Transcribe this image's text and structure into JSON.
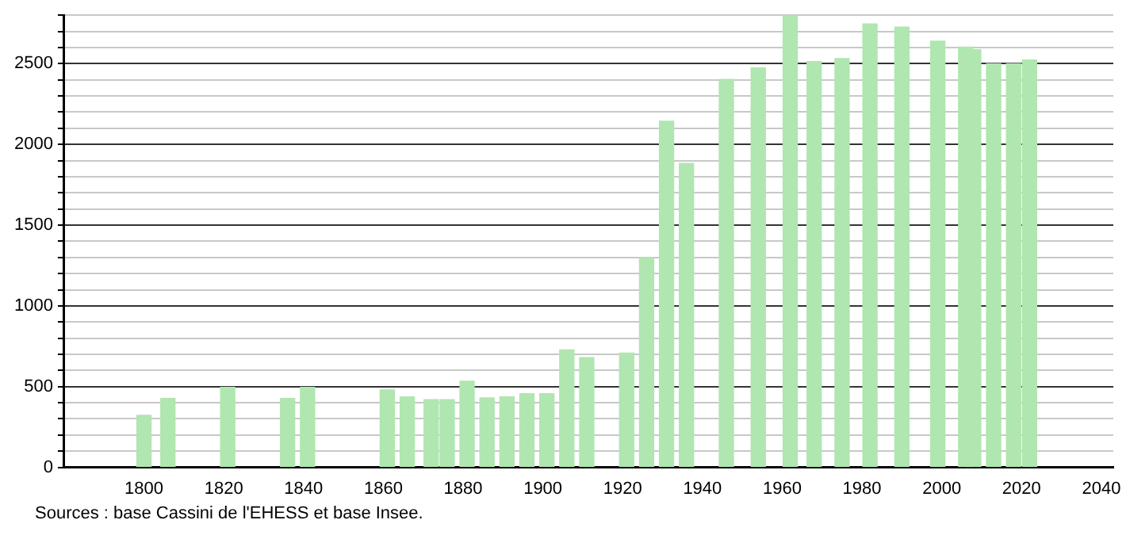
{
  "chart_data": {
    "type": "bar",
    "color": "#b0e6b0",
    "x": [
      1800,
      1806,
      1821,
      1836,
      1841,
      1861,
      1866,
      1872,
      1876,
      1881,
      1886,
      1891,
      1896,
      1901,
      1906,
      1911,
      1921,
      1926,
      1931,
      1936,
      1946,
      1954,
      1962,
      1968,
      1975,
      1982,
      1990,
      1999,
      2006,
      2008,
      2013,
      2018,
      2022
    ],
    "values": [
      323,
      427,
      495,
      427,
      495,
      479,
      437,
      420,
      420,
      534,
      430,
      437,
      456,
      456,
      728,
      679,
      708,
      1297,
      2144,
      1882,
      2403,
      2474,
      2800,
      2513,
      2532,
      2746,
      2726,
      2639,
      2603,
      2587,
      2500,
      2500,
      2523
    ],
    "xlim": [
      1780,
      2043
    ],
    "xticks": [
      1800,
      1820,
      1840,
      1860,
      1880,
      1900,
      1920,
      1940,
      1960,
      1980,
      2000,
      2020,
      2040
    ],
    "ylim": [
      0,
      2800
    ],
    "yticks": [
      0,
      {
        "value": 100,
        "label": null
      },
      {
        "value": 200,
        "label": null
      },
      {
        "value": 300,
        "label": null
      },
      {
        "value": 400,
        "label": null
      },
      500,
      {
        "value": 600,
        "label": null
      },
      {
        "value": 700,
        "label": null
      },
      {
        "value": 800,
        "label": null
      },
      {
        "value": 900,
        "label": null
      },
      1000,
      {
        "value": 1100,
        "label": null
      },
      {
        "value": 1200,
        "label": null
      },
      {
        "value": 1300,
        "label": null
      },
      {
        "value": 1400,
        "label": null
      },
      1500,
      {
        "value": 1600,
        "label": null
      },
      {
        "value": 1700,
        "label": null
      },
      {
        "value": 1800,
        "label": null
      },
      {
        "value": 1900,
        "label": null
      },
      2000,
      {
        "value": 2100,
        "label": null
      },
      {
        "value": 2200,
        "label": null
      },
      {
        "value": 2300,
        "label": null
      },
      {
        "value": 2400,
        "label": null
      },
      2500,
      {
        "value": 2600,
        "label": null
      },
      {
        "value": 2700,
        "label": null
      },
      {
        "value": 2800,
        "label": null
      }
    ],
    "grid": "y",
    "annotations": [
      "Sources : base Cassini de l'EHESS et base Insee."
    ]
  }
}
